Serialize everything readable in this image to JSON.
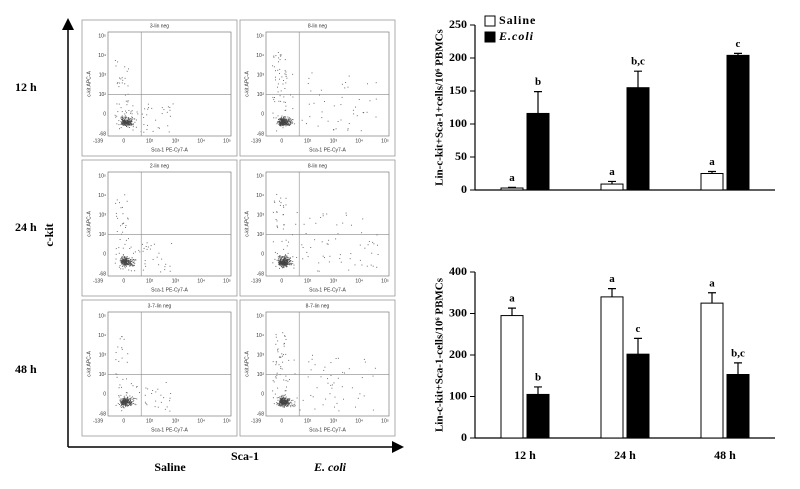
{
  "flow": {
    "y_label": "c-kit",
    "x_label": "Sca-1",
    "columns": [
      "Saline",
      "E. coli"
    ],
    "rows": [
      "12 h",
      "24 h",
      "48 h"
    ],
    "panels": [
      [
        "3-lin neg",
        "8-lin neg"
      ],
      [
        "2-lin neg",
        "8-lin neg"
      ],
      [
        "3-7-lin neg",
        "8-7-lin neg"
      ]
    ],
    "panel_x_axis": "Sca-1 PE-Cy7-A",
    "panel_y_axis": "c-kit APC-A",
    "panel_x_ticks": [
      "-139",
      "0",
      "10²",
      "10³",
      "10⁴",
      "10⁵"
    ],
    "panel_y_ticks": [
      "-68",
      "0",
      "10²",
      "10³",
      "10⁴",
      "10⁵"
    ]
  },
  "chart_data": [
    {
      "type": "bar",
      "ylabel": "Lin-c-kit+Sca-1+cells/10⁶ PBMCs",
      "ylim": [
        0,
        250
      ],
      "yticks": [
        0,
        50,
        100,
        150,
        200,
        250
      ],
      "legend": "upper left",
      "series": [
        {
          "name": "Saline",
          "color": "#ffffff",
          "values": [
            3,
            9,
            25
          ],
          "errors": [
            1,
            4,
            3
          ],
          "letters": [
            "a",
            "a",
            "a"
          ]
        },
        {
          "name": "E.coli",
          "color": "#000000",
          "values": [
            116,
            155,
            204
          ],
          "errors": [
            33,
            25,
            3
          ],
          "letters": [
            "b",
            "b,c",
            "c"
          ]
        }
      ]
    },
    {
      "type": "bar",
      "ylabel": "Lin-c-kit+Sca-1-cells/10⁶ PBMCs",
      "ylim": [
        0,
        400
      ],
      "yticks": [
        0,
        100,
        200,
        300,
        400
      ],
      "categories": [
        "12 h",
        "24 h",
        "48 h"
      ],
      "series": [
        {
          "color": "#ffffff",
          "values": [
            295,
            340,
            325
          ],
          "errors": [
            18,
            20,
            25
          ],
          "letters": [
            "a",
            "a",
            "a"
          ]
        },
        {
          "color": "#000000",
          "values": [
            105,
            202,
            153
          ],
          "errors": [
            18,
            38,
            28
          ],
          "letters": [
            "b",
            "c",
            "b,c"
          ]
        }
      ]
    }
  ]
}
